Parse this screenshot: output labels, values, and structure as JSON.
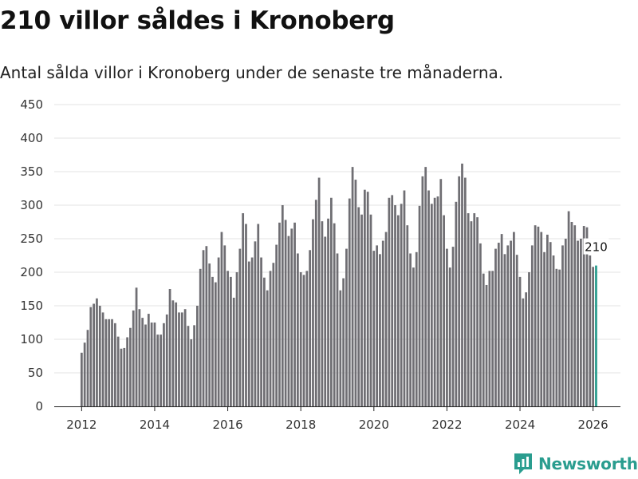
{
  "title": "210 villor såldes i Kronoberg",
  "subtitle": "Antal sålda villor i Kronoberg under de senaste tre månaderna.",
  "brand": {
    "name": "Newsworthy",
    "icon": "newsworthy-logo-icon"
  },
  "colors": {
    "bar": "#6f6e73",
    "highlight": "#2a9d8f",
    "grid": "#e3e3e3",
    "axis": "#222222"
  },
  "chart_data": {
    "type": "bar",
    "title": "210 villor såldes i Kronoberg",
    "subtitle": "Antal sålda villor i Kronoberg under de senaste tre månaderna.",
    "xlabel": "",
    "ylabel": "",
    "ylim": [
      0,
      450
    ],
    "yticks": [
      0,
      50,
      100,
      150,
      200,
      250,
      300,
      350,
      400,
      450
    ],
    "xticks": [
      "2012",
      "2014",
      "2016",
      "2018",
      "2020",
      "2022",
      "2024",
      "2026"
    ],
    "x_range": [
      2011.25,
      2026.75
    ],
    "grid": true,
    "legend": "none",
    "start": [
      2012,
      1
    ],
    "values": [
      80,
      95,
      114,
      148,
      153,
      161,
      150,
      140,
      130,
      130,
      130,
      124,
      104,
      86,
      87,
      103,
      117,
      143,
      177,
      145,
      132,
      122,
      138,
      125,
      125,
      107,
      107,
      124,
      137,
      175,
      158,
      155,
      140,
      140,
      145,
      120,
      100,
      121,
      150,
      205,
      233,
      239,
      213,
      193,
      185,
      222,
      260,
      240,
      202,
      193,
      162,
      200,
      235,
      288,
      272,
      216,
      222,
      246,
      272,
      222,
      192,
      173,
      202,
      214,
      241,
      274,
      300,
      278,
      254,
      265,
      274,
      228,
      200,
      196,
      202,
      233,
      279,
      308,
      341,
      276,
      253,
      280,
      311,
      273,
      228,
      173,
      191,
      235,
      310,
      357,
      338,
      297,
      286,
      323,
      320,
      286,
      232,
      240,
      227,
      247,
      260,
      311,
      315,
      300,
      285,
      302,
      322,
      270,
      228,
      207,
      230,
      299,
      343,
      357,
      322,
      302,
      311,
      313,
      339,
      285,
      235,
      207,
      238,
      305,
      343,
      362,
      341,
      288,
      276,
      288,
      282,
      243,
      198,
      181,
      202,
      202,
      235,
      244,
      257,
      227,
      240,
      247,
      260,
      226,
      193,
      161,
      170,
      200,
      240,
      270,
      268,
      260,
      230,
      256,
      245,
      225,
      205,
      204,
      240,
      250,
      291,
      275,
      270,
      247,
      250,
      269,
      267,
      225,
      208,
      210
    ],
    "last_value": 210,
    "last_value_label": "210"
  }
}
